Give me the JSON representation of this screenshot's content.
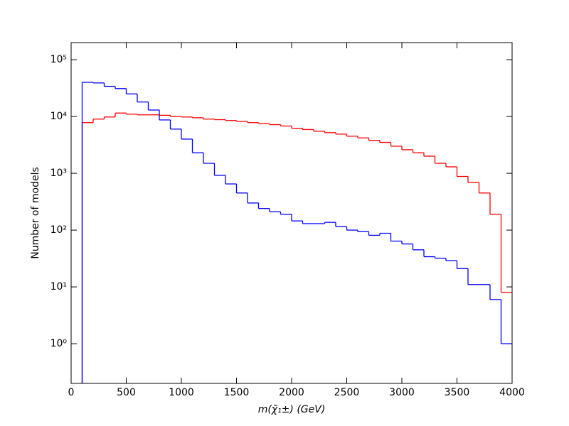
{
  "chart_data": {
    "type": "histogram-step",
    "xlabel": "m(χ̃₁±) (GeV)",
    "ylabel": "Number of models",
    "yscale": "log",
    "bins": [
      100,
      200,
      300,
      400,
      500,
      600,
      700,
      800,
      900,
      1000,
      1100,
      1200,
      1300,
      1400,
      1500,
      1600,
      1700,
      1800,
      1900,
      2000,
      2100,
      2200,
      2300,
      2400,
      2500,
      2600,
      2700,
      2800,
      2900,
      3000,
      3100,
      3200,
      3300,
      3400,
      3500,
      3600,
      3700,
      3800,
      3900,
      4000
    ],
    "series": [
      {
        "color": "#ff0000",
        "values": [
          7800,
          9000,
          9800,
          11500,
          11000,
          10700,
          10700,
          10500,
          10000,
          9800,
          9500,
          9000,
          8800,
          8500,
          8200,
          7800,
          7500,
          7200,
          6800,
          6200,
          5900,
          5500,
          5200,
          4900,
          4500,
          4200,
          3800,
          3500,
          3000,
          2600,
          2300,
          2000,
          1500,
          1300,
          880,
          690,
          450,
          190,
          8
        ]
      },
      {
        "color": "#0000ff",
        "values": [
          40000,
          39000,
          34000,
          31000,
          25000,
          18000,
          13000,
          8700,
          6000,
          4000,
          2300,
          1500,
          920,
          650,
          450,
          300,
          240,
          210,
          190,
          145,
          130,
          130,
          137,
          115,
          100,
          94,
          81,
          88,
          64,
          57,
          45,
          34,
          32,
          29,
          21,
          11,
          11,
          6,
          1
        ]
      }
    ],
    "xlim": [
      0,
      4000
    ],
    "xticks": [
      0,
      500,
      1000,
      1500,
      2000,
      2500,
      3000,
      3500,
      4000
    ],
    "ylim": [
      0.2,
      200000
    ],
    "yticks": [
      {
        "value": 1,
        "label": "10⁰"
      },
      {
        "value": 10,
        "label": "10¹"
      },
      {
        "value": 100,
        "label": "10²"
      },
      {
        "value": 1000,
        "label": "10³"
      },
      {
        "value": 10000,
        "label": "10⁴"
      },
      {
        "value": 100000,
        "label": "10⁵"
      }
    ]
  }
}
